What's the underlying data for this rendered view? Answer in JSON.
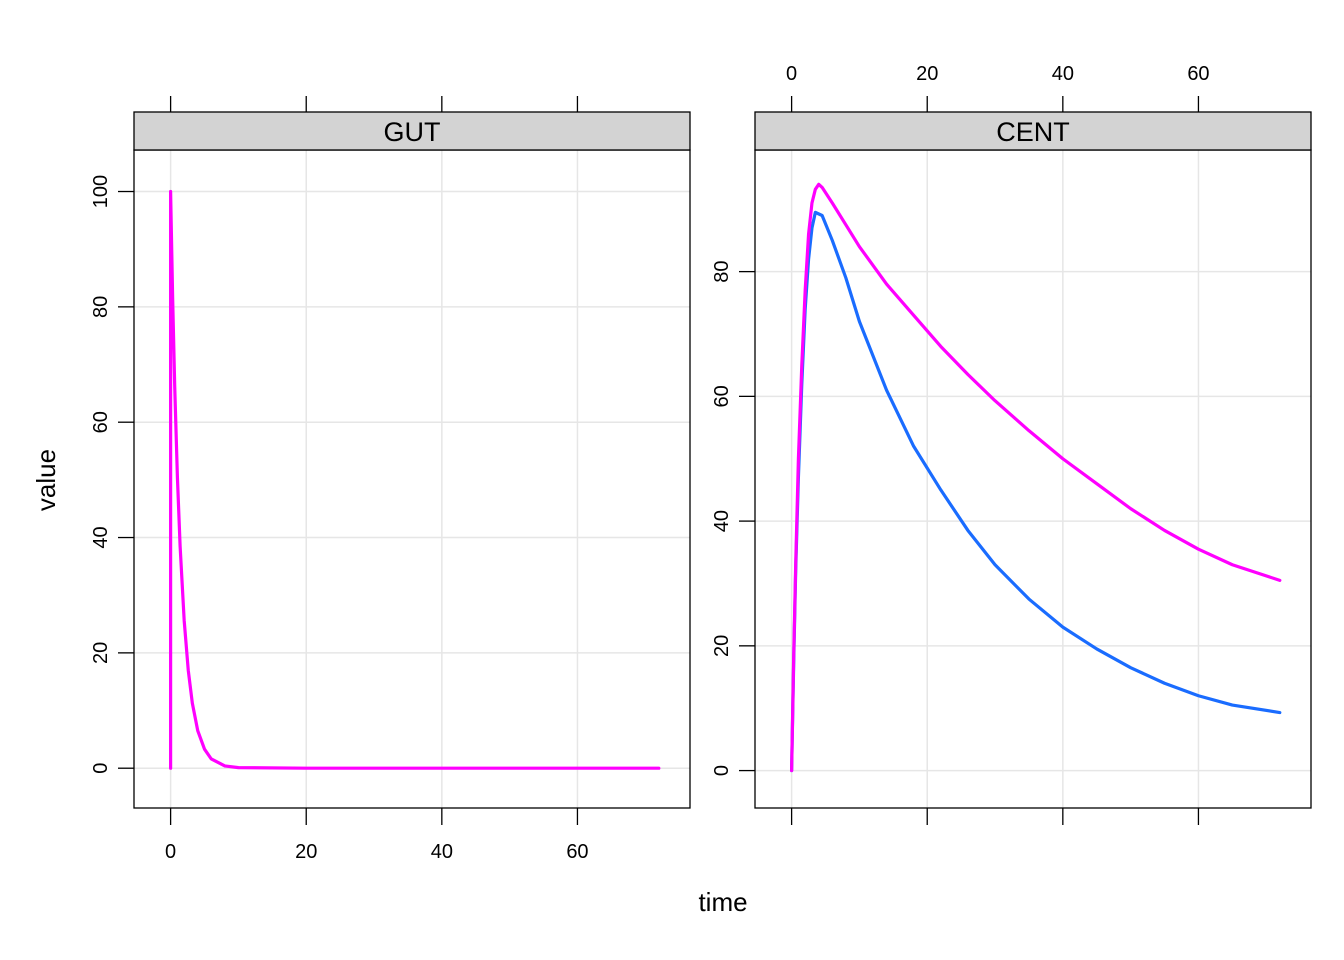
{
  "chart_data": {
    "type": "line",
    "xlabel": "time",
    "ylabel": "value",
    "grid": true,
    "legend": "none",
    "colors": [
      "#1a6cff",
      "#ff00ff"
    ],
    "panels": [
      {
        "strip": "GUT",
        "xlim": [
          -5.4,
          76.6
        ],
        "ylim": [
          -6.9,
          107.2
        ],
        "xticks": [
          0,
          20,
          40,
          60
        ],
        "yticks": [
          0,
          20,
          40,
          60,
          80,
          100
        ],
        "xtick_labels_side": "bottom",
        "ytick_labels_side": "left",
        "series": [
          {
            "color": "#ff00ff",
            "x": [
              0,
              0,
              0.02,
              0.3,
              0.6,
              1.0,
              1.4,
              2.0,
              2.6,
              3.2,
              4.0,
              5.0,
              6.0,
              8.0,
              10,
              20,
              40,
              72
            ],
            "values": [
              0,
              100,
              98.6,
              81.5,
              66.4,
              50.5,
              38.5,
              25.6,
              17.0,
              11.3,
              6.5,
              3.3,
              1.6,
              0.4,
              0.1,
              0,
              0,
              0
            ]
          }
        ]
      },
      {
        "strip": "CENT",
        "xlim": [
          -5.4,
          76.6
        ],
        "ylim": [
          -6.0,
          99.5
        ],
        "xticks": [
          0,
          20,
          40,
          60
        ],
        "yticks": [
          0,
          20,
          40,
          60,
          80
        ],
        "xtick_labels_side": "top",
        "ytick_labels_side": "left",
        "series": [
          {
            "color": "#1a6cff",
            "x": [
              0,
              0.3,
              0.6,
              1.0,
              1.5,
              2.0,
              2.5,
              3.0,
              3.5,
              4.5,
              6,
              8,
              10,
              14,
              18,
              22,
              26,
              30,
              35,
              40,
              45,
              50,
              55,
              60,
              65,
              72
            ],
            "values": [
              0,
              17,
              32,
              47,
              62,
              74,
              82,
              87,
              89.5,
              89,
              85,
              79,
              72,
              61,
              52,
              45,
              38.5,
              33,
              27.5,
              23,
              19.5,
              16.5,
              14,
              12,
              10.5,
              9.3
            ]
          },
          {
            "color": "#ff00ff",
            "x": [
              0,
              0.3,
              0.6,
              1.0,
              1.5,
              2.0,
              2.5,
              3.0,
              3.5,
              4.0,
              4.5,
              6,
              8,
              10,
              14,
              18,
              22,
              26,
              30,
              35,
              40,
              45,
              50,
              55,
              60,
              65,
              72
            ],
            "values": [
              0,
              18,
              33,
              50,
              65,
              77,
              86,
              91,
              93.2,
              94,
              93.5,
              91,
              87.5,
              84,
              78,
              73,
              68,
              63.5,
              59.3,
              54.5,
              50,
              46,
              42,
              38.5,
              35.5,
              33,
              30.5
            ]
          }
        ]
      }
    ]
  }
}
